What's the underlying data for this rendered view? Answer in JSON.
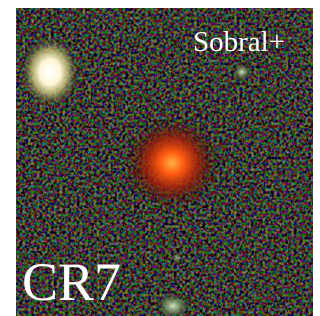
{
  "labels": {
    "credit": "Sobral+",
    "name": "CR7"
  }
}
